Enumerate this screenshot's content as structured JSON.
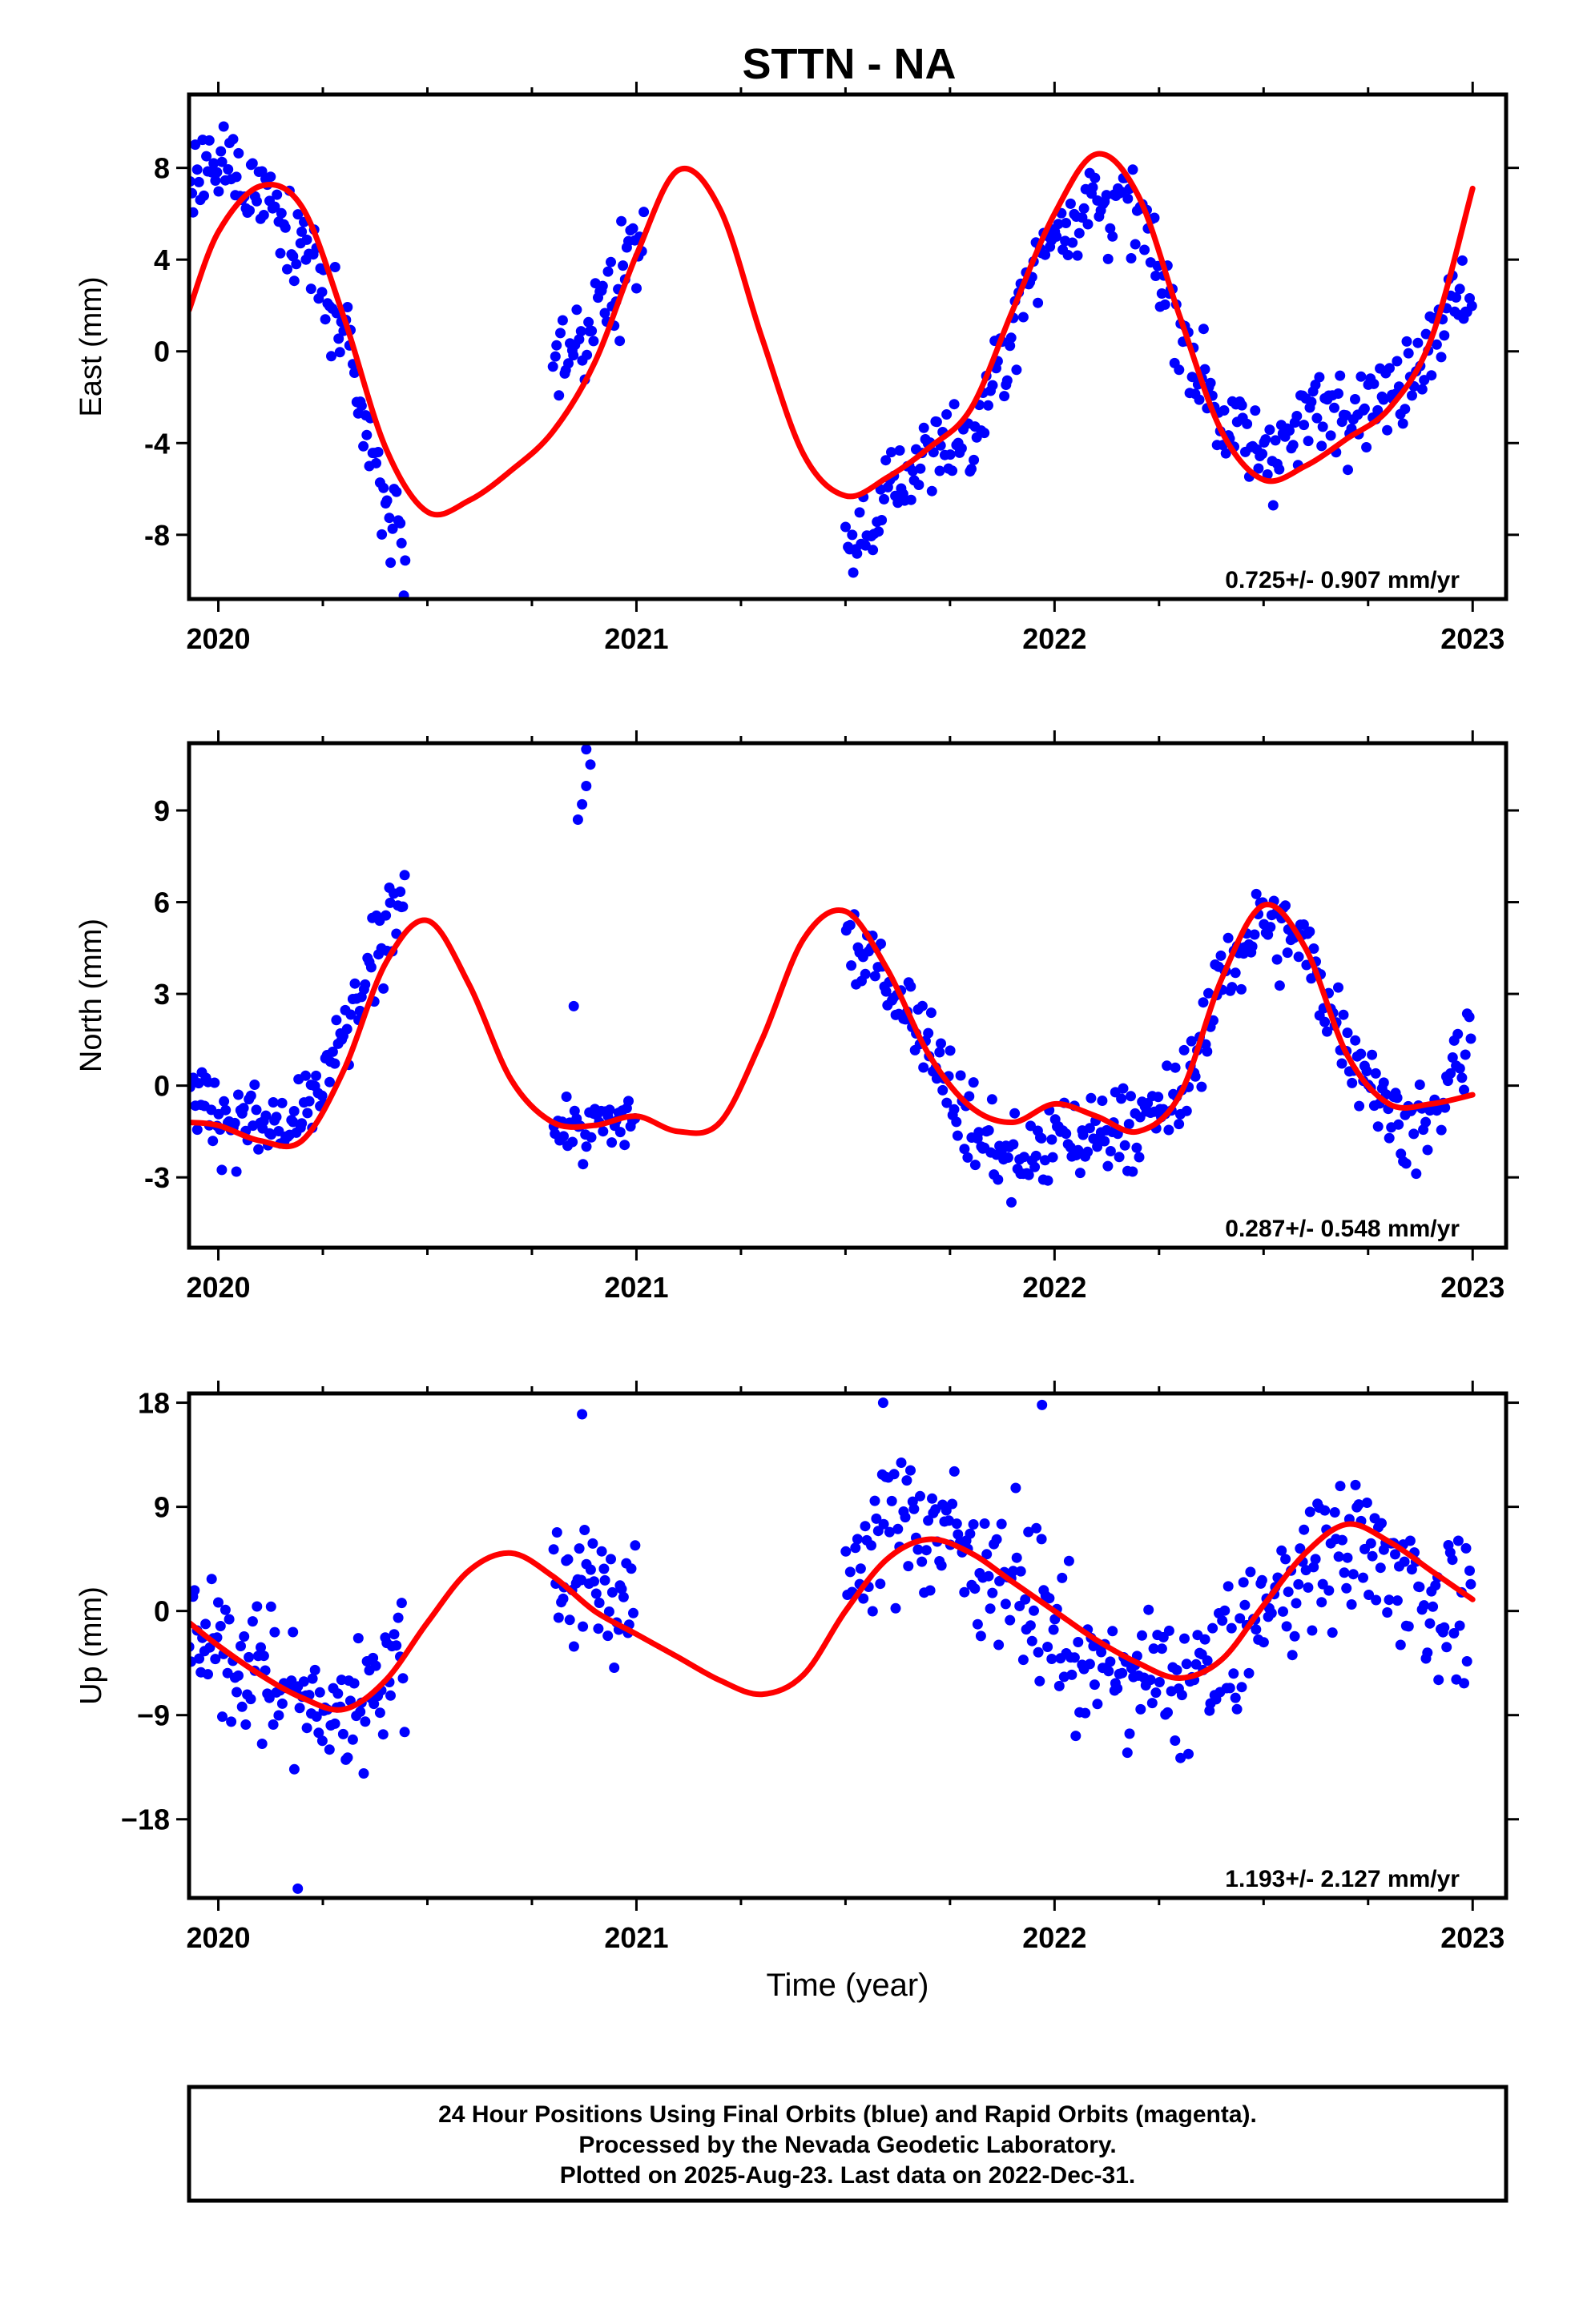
{
  "title": "STTN - NA",
  "xlabel": "Time (year)",
  "colors": {
    "points": "#0000ff",
    "fit": "#ff0000",
    "frame": "#000000"
  },
  "chart_data": [
    {
      "type": "scatter",
      "ylabel": "East (mm)",
      "rate": "0.725+/- 0.907 mm/yr",
      "xlim": [
        2019.93,
        2023.08
      ],
      "ylim": [
        -10.8,
        11.2
      ],
      "xticks": [
        2020,
        2021,
        2022,
        2023
      ],
      "yticks": [
        -8,
        -4,
        0,
        4,
        8
      ],
      "ytick_labels": [
        "-8",
        "-4",
        "0",
        "4",
        "8"
      ],
      "fit": [
        [
          2019.93,
          1.8
        ],
        [
          2020.0,
          5.2
        ],
        [
          2020.1,
          7.2
        ],
        [
          2020.2,
          6.3
        ],
        [
          2020.3,
          1.5
        ],
        [
          2020.4,
          -4.2
        ],
        [
          2020.5,
          -7.0
        ],
        [
          2020.6,
          -6.5
        ],
        [
          2020.7,
          -5.2
        ],
        [
          2020.8,
          -3.5
        ],
        [
          2020.9,
          -0.5
        ],
        [
          2021.0,
          4.2
        ],
        [
          2021.1,
          7.9
        ],
        [
          2021.2,
          6.2
        ],
        [
          2021.3,
          0.6
        ],
        [
          2021.4,
          -4.5
        ],
        [
          2021.5,
          -6.3
        ],
        [
          2021.6,
          -5.5
        ],
        [
          2021.7,
          -4.2
        ],
        [
          2021.8,
          -2.5
        ],
        [
          2021.9,
          1.8
        ],
        [
          2022.0,
          6.0
        ],
        [
          2022.1,
          8.6
        ],
        [
          2022.2,
          6.8
        ],
        [
          2022.3,
          1.5
        ],
        [
          2022.4,
          -3.5
        ],
        [
          2022.5,
          -5.6
        ],
        [
          2022.6,
          -5.0
        ],
        [
          2022.7,
          -3.8
        ],
        [
          2022.8,
          -2.5
        ],
        [
          2022.9,
          0.5
        ],
        [
          2023.0,
          7.1
        ]
      ],
      "segments": [
        {
          "start": 2019.93,
          "end": 2020.45,
          "anchors": [
            [
              2019.93,
              7.5
            ],
            [
              2020.0,
              8.0
            ],
            [
              2020.1,
              7.3
            ],
            [
              2020.2,
              5.0
            ],
            [
              2020.3,
              0.5
            ],
            [
              2020.35,
              -3.5
            ],
            [
              2020.4,
              -6.5
            ],
            [
              2020.45,
              -9.0
            ]
          ],
          "noise": 1.4,
          "n": 120
        },
        {
          "start": 2020.8,
          "end": 2021.02,
          "anchors": [
            [
              2020.8,
              -0.5
            ],
            [
              2020.87,
              0.5
            ],
            [
              2020.94,
              2.5
            ],
            [
              2021.0,
              5.0
            ]
          ],
          "noise": 1.4,
          "n": 50
        },
        {
          "start": 2021.5,
          "end": 2023.0,
          "anchors": [
            [
              2021.5,
              -9.0
            ],
            [
              2021.6,
              -6.5
            ],
            [
              2021.7,
              -4.0
            ],
            [
              2021.8,
              -4.2
            ],
            [
              2021.9,
              1.0
            ],
            [
              2022.0,
              5.5
            ],
            [
              2022.1,
              6.8
            ],
            [
              2022.2,
              6.0
            ],
            [
              2022.3,
              1.0
            ],
            [
              2022.4,
              -3.0
            ],
            [
              2022.5,
              -4.5
            ],
            [
              2022.6,
              -3.0
            ],
            [
              2022.7,
              -2.0
            ],
            [
              2022.8,
              -2.3
            ],
            [
              2022.9,
              1.0
            ],
            [
              2023.0,
              3.0
            ]
          ],
          "noise": 1.4,
          "n": 330
        }
      ]
    },
    {
      "type": "scatter",
      "ylabel": "North (mm)",
      "rate": "0.287+/- 0.548 mm/yr",
      "xlim": [
        2019.93,
        2023.08
      ],
      "ylim": [
        -5.3,
        11.2
      ],
      "xticks": [
        2020,
        2021,
        2022,
        2023
      ],
      "yticks": [
        -3,
        0,
        3,
        6,
        9
      ],
      "ytick_labels": [
        "-3",
        "0",
        "3",
        "6",
        "9"
      ],
      "fit": [
        [
          2019.93,
          -1.2
        ],
        [
          2020.0,
          -1.3
        ],
        [
          2020.1,
          -1.8
        ],
        [
          2020.2,
          -1.8
        ],
        [
          2020.3,
          0.5
        ],
        [
          2020.4,
          4.0
        ],
        [
          2020.5,
          5.4
        ],
        [
          2020.6,
          3.3
        ],
        [
          2020.7,
          0.2
        ],
        [
          2020.8,
          -1.2
        ],
        [
          2020.9,
          -1.3
        ],
        [
          2021.0,
          -1.0
        ],
        [
          2021.1,
          -1.5
        ],
        [
          2021.2,
          -1.2
        ],
        [
          2021.3,
          1.5
        ],
        [
          2021.4,
          4.8
        ],
        [
          2021.5,
          5.7
        ],
        [
          2021.6,
          3.8
        ],
        [
          2021.7,
          1.0
        ],
        [
          2021.8,
          -0.7
        ],
        [
          2021.9,
          -1.2
        ],
        [
          2022.0,
          -0.6
        ],
        [
          2022.1,
          -1.0
        ],
        [
          2022.2,
          -1.5
        ],
        [
          2022.3,
          -0.3
        ],
        [
          2022.4,
          3.5
        ],
        [
          2022.5,
          5.9
        ],
        [
          2022.6,
          4.5
        ],
        [
          2022.7,
          1.0
        ],
        [
          2022.8,
          -0.6
        ],
        [
          2022.9,
          -0.6
        ],
        [
          2023.0,
          -0.3
        ]
      ],
      "segments": [
        {
          "start": 2019.93,
          "end": 2020.45,
          "anchors": [
            [
              2019.93,
              0.0
            ],
            [
              2020.0,
              -1.0
            ],
            [
              2020.1,
              -1.3
            ],
            [
              2020.2,
              -1.3
            ],
            [
              2020.3,
              1.5
            ],
            [
              2020.4,
              5.0
            ],
            [
              2020.45,
              7.0
            ]
          ],
          "noise": 0.9,
          "n": 120
        },
        {
          "start": 2020.8,
          "end": 2021.0,
          "anchors": [
            [
              2020.8,
              -1.3
            ],
            [
              2020.9,
              -1.5
            ],
            [
              2021.0,
              -1.0
            ]
          ],
          "noise": 0.7,
          "n": 40
        },
        {
          "start": 2021.5,
          "end": 2023.0,
          "anchors": [
            [
              2021.5,
              5.0
            ],
            [
              2021.6,
              3.5
            ],
            [
              2021.7,
              1.5
            ],
            [
              2021.8,
              -1.5
            ],
            [
              2021.9,
              -2.5
            ],
            [
              2022.0,
              -2.0
            ],
            [
              2022.1,
              -1.5
            ],
            [
              2022.2,
              -1.2
            ],
            [
              2022.3,
              -0.5
            ],
            [
              2022.4,
              3.5
            ],
            [
              2022.5,
              5.5
            ],
            [
              2022.6,
              4.5
            ],
            [
              2022.7,
              1.5
            ],
            [
              2022.8,
              -0.8
            ],
            [
              2022.9,
              -1.5
            ],
            [
              2023.0,
              2.0
            ]
          ],
          "noise": 1.0,
          "n": 330
        }
      ],
      "outliers": [
        [
          2020.86,
          8.7
        ],
        [
          2020.87,
          9.2
        ],
        [
          2020.88,
          9.8
        ],
        [
          2020.89,
          10.5
        ],
        [
          2020.88,
          11.0
        ],
        [
          2020.85,
          2.6
        ]
      ]
    },
    {
      "type": "scatter",
      "ylabel": "Up (mm)",
      "rate": "1.193+/- 2.127 mm/yr",
      "xlim": [
        2019.93,
        2023.08
      ],
      "ylim": [
        -24.8,
        18.8
      ],
      "xticks": [
        2020,
        2021,
        2022,
        2023
      ],
      "yticks": [
        -18,
        -9,
        0,
        9,
        18
      ],
      "ytick_labels": [
        "−18",
        "−9",
        "0",
        "9",
        "18"
      ],
      "fit": [
        [
          2019.93,
          -1.0
        ],
        [
          2020.0,
          -3.0
        ],
        [
          2020.1,
          -5.5
        ],
        [
          2020.2,
          -7.5
        ],
        [
          2020.3,
          -8.5
        ],
        [
          2020.4,
          -6.0
        ],
        [
          2020.5,
          -1.0
        ],
        [
          2020.6,
          3.5
        ],
        [
          2020.7,
          5.0
        ],
        [
          2020.8,
          3.0
        ],
        [
          2020.9,
          0.0
        ],
        [
          2021.0,
          -2.0
        ],
        [
          2021.1,
          -4.0
        ],
        [
          2021.2,
          -6.0
        ],
        [
          2021.3,
          -7.2
        ],
        [
          2021.4,
          -5.5
        ],
        [
          2021.5,
          0.0
        ],
        [
          2021.6,
          4.5
        ],
        [
          2021.7,
          6.2
        ],
        [
          2021.8,
          5.0
        ],
        [
          2021.9,
          2.5
        ],
        [
          2022.0,
          0.0
        ],
        [
          2022.1,
          -2.5
        ],
        [
          2022.2,
          -4.5
        ],
        [
          2022.3,
          -5.8
        ],
        [
          2022.4,
          -4.2
        ],
        [
          2022.5,
          0.5
        ],
        [
          2022.6,
          5.0
        ],
        [
          2022.7,
          7.5
        ],
        [
          2022.8,
          6.0
        ],
        [
          2022.9,
          3.5
        ],
        [
          2023.0,
          1.0
        ]
      ],
      "segments": [
        {
          "start": 2019.93,
          "end": 2020.45,
          "anchors": [
            [
              2019.93,
              -3.0
            ],
            [
              2020.0,
              -3.0
            ],
            [
              2020.1,
              -5.0
            ],
            [
              2020.2,
              -8.0
            ],
            [
              2020.3,
              -9.0
            ],
            [
              2020.4,
              -5.0
            ],
            [
              2020.45,
              -3.0
            ]
          ],
          "noise": 4.0,
          "n": 120
        },
        {
          "start": 2020.8,
          "end": 2021.0,
          "anchors": [
            [
              2020.8,
              3.0
            ],
            [
              2020.9,
              3.0
            ],
            [
              2021.0,
              -1.0
            ]
          ],
          "noise": 4.0,
          "n": 45
        },
        {
          "start": 2021.5,
          "end": 2023.0,
          "anchors": [
            [
              2021.5,
              3.0
            ],
            [
              2021.6,
              8.0
            ],
            [
              2021.7,
              8.0
            ],
            [
              2021.8,
              5.0
            ],
            [
              2021.9,
              3.0
            ],
            [
              2022.0,
              -2.0
            ],
            [
              2022.1,
              -5.0
            ],
            [
              2022.2,
              -6.0
            ],
            [
              2022.3,
              -6.0
            ],
            [
              2022.4,
              -5.0
            ],
            [
              2022.5,
              0.0
            ],
            [
              2022.6,
              4.0
            ],
            [
              2022.7,
              6.0
            ],
            [
              2022.8,
              4.0
            ],
            [
              2022.9,
              1.0
            ],
            [
              2023.0,
              0.0
            ]
          ],
          "noise": 4.3,
          "n": 330
        }
      ],
      "outliers": [
        [
          2020.19,
          -24.0
        ],
        [
          2021.59,
          18.0
        ],
        [
          2021.97,
          17.8
        ],
        [
          2020.87,
          17.0
        ]
      ]
    }
  ],
  "footer": {
    "line1": "24 Hour Positions Using Final Orbits (blue) and Rapid Orbits (magenta).",
    "line2": "Processed by the Nevada Geodetic Laboratory.",
    "line3": "Plotted on 2025-Aug-23. Last data on 2022-Dec-31."
  }
}
